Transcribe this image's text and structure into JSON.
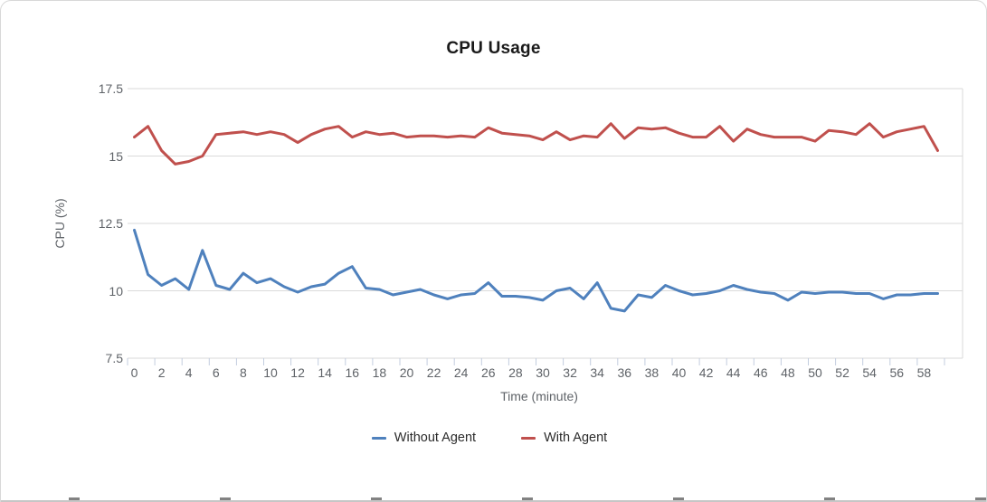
{
  "title": "CPU Usage",
  "y_axis": {
    "label": "CPU (%)",
    "tick_labels": [
      "17.5",
      "15",
      "12.5",
      "10",
      "7.5"
    ],
    "tick_values": [
      17.5,
      15,
      12.5,
      10,
      7.5
    ]
  },
  "x_axis": {
    "label": "Time (minute)",
    "tick_labels": [
      "0",
      "2",
      "4",
      "6",
      "8",
      "10",
      "12",
      "14",
      "16",
      "18",
      "20",
      "22",
      "24",
      "26",
      "28",
      "30",
      "32",
      "34",
      "36",
      "38",
      "40",
      "42",
      "44",
      "46",
      "48",
      "50",
      "52",
      "54",
      "56",
      "58"
    ],
    "tick_values": [
      0,
      2,
      4,
      6,
      8,
      10,
      12,
      14,
      16,
      18,
      20,
      22,
      24,
      26,
      28,
      30,
      32,
      34,
      36,
      38,
      40,
      42,
      44,
      46,
      48,
      50,
      52,
      54,
      56,
      58
    ]
  },
  "legend": [
    {
      "label": "Without Agent",
      "color": "#4f81bd"
    },
    {
      "label": "With Agent",
      "color": "#c0504d"
    }
  ],
  "colors": {
    "without_agent": "#4f81bd",
    "with_agent": "#c0504d",
    "gridline": "#dadada",
    "tick_mark": "#c3cddf",
    "tick_text": "#5f6368"
  },
  "chart_data": {
    "type": "line",
    "title": "CPU Usage",
    "xlabel": "Time (minute)",
    "ylabel": "CPU (%)",
    "ylim": [
      7.5,
      17.5
    ],
    "xlim": [
      0,
      59
    ],
    "grid": true,
    "legend_position": "bottom",
    "x": [
      0,
      1,
      2,
      3,
      4,
      5,
      6,
      7,
      8,
      9,
      10,
      11,
      12,
      13,
      14,
      15,
      16,
      17,
      18,
      19,
      20,
      21,
      22,
      23,
      24,
      25,
      26,
      27,
      28,
      29,
      30,
      31,
      32,
      33,
      34,
      35,
      36,
      37,
      38,
      39,
      40,
      41,
      42,
      43,
      44,
      45,
      46,
      47,
      48,
      49,
      50,
      51,
      52,
      53,
      54,
      55,
      56,
      57,
      58,
      59
    ],
    "series": [
      {
        "name": "Without Agent",
        "color": "#4f81bd",
        "values": [
          12.25,
          10.6,
          10.2,
          10.45,
          10.05,
          11.5,
          10.2,
          10.05,
          10.65,
          10.3,
          10.45,
          10.15,
          9.95,
          10.15,
          10.25,
          10.65,
          10.9,
          10.1,
          10.05,
          9.85,
          9.95,
          10.05,
          9.85,
          9.7,
          9.85,
          9.9,
          10.3,
          9.8,
          9.8,
          9.75,
          9.65,
          10.0,
          10.1,
          9.7,
          10.3,
          9.35,
          9.25,
          9.85,
          9.75,
          10.2,
          10.0,
          9.85,
          9.9,
          10.0,
          10.2,
          10.05,
          9.95,
          9.9,
          9.65,
          9.95,
          9.9,
          9.95,
          9.95,
          9.9,
          9.9,
          9.7,
          9.85,
          9.85,
          9.9,
          9.9
        ]
      },
      {
        "name": "With Agent",
        "color": "#c0504d",
        "values": [
          15.7,
          16.1,
          15.2,
          14.7,
          14.8,
          15.0,
          15.8,
          15.85,
          15.9,
          15.8,
          15.9,
          15.8,
          15.5,
          15.8,
          16.0,
          16.1,
          15.7,
          15.9,
          15.8,
          15.85,
          15.7,
          15.75,
          15.75,
          15.7,
          15.75,
          15.7,
          16.05,
          15.85,
          15.8,
          15.75,
          15.6,
          15.9,
          15.6,
          15.75,
          15.7,
          16.2,
          15.65,
          16.05,
          16.0,
          16.05,
          15.85,
          15.7,
          15.7,
          16.1,
          15.55,
          16.0,
          15.8,
          15.7,
          15.7,
          15.7,
          15.55,
          15.95,
          15.9,
          15.8,
          16.2,
          15.7,
          15.9,
          16.0,
          16.1,
          15.2
        ]
      }
    ]
  }
}
